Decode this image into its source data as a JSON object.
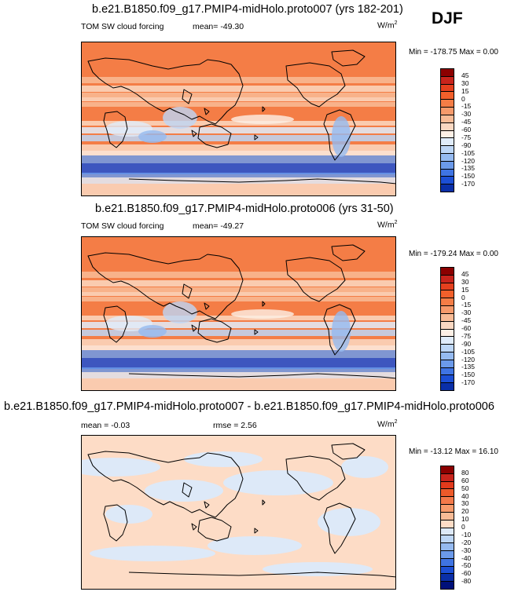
{
  "season": "DJF",
  "chart_data": [
    {
      "type": "heatmap",
      "title": "b.e21.B1850.f09_g17.PMIP4-midHolo.proto007 (yrs 182-201)",
      "left_label": "TOM SW cloud forcing",
      "mean_text": "mean= -49.30",
      "units_base": "W/m",
      "units_exp": "2",
      "minmax_text": "Min = -178.75 Max =   0.00",
      "min": -178.75,
      "max": 0.0,
      "mean": -49.3,
      "colorbar_levels": [
        "45",
        "30",
        "15",
        "0",
        "-15",
        "-30",
        "-45",
        "-60",
        "-75",
        "-90",
        "-105",
        "-120",
        "-135",
        "-150",
        "-170"
      ],
      "colorbar_colors": [
        "#8b0000",
        "#c8241c",
        "#e5401e",
        "#f2602b",
        "#f47d46",
        "#f69a6b",
        "#f8bb96",
        "#fad8c2",
        "#fdf0e6",
        "#e0ecfa",
        "#bdd6f6",
        "#95baf0",
        "#6b9aea",
        "#3f74e3",
        "#1c4fd5",
        "#0a2fa8"
      ]
    },
    {
      "type": "heatmap",
      "title": "b.e21.B1850.f09_g17.PMIP4-midHolo.proto006 (yrs 31-50)",
      "left_label": "TOM SW cloud forcing",
      "mean_text": "mean= -49.27",
      "units_base": "W/m",
      "units_exp": "2",
      "minmax_text": "Min = -179.24 Max =   0.00",
      "min": -179.24,
      "max": 0.0,
      "mean": -49.27,
      "colorbar_levels": [
        "45",
        "30",
        "15",
        "0",
        "-15",
        "-30",
        "-45",
        "-60",
        "-75",
        "-90",
        "-105",
        "-120",
        "-135",
        "-150",
        "-170"
      ],
      "colorbar_colors": [
        "#8b0000",
        "#c8241c",
        "#e5401e",
        "#f2602b",
        "#f47d46",
        "#f69a6b",
        "#f8bb96",
        "#fad8c2",
        "#fdf0e6",
        "#e0ecfa",
        "#bdd6f6",
        "#95baf0",
        "#6b9aea",
        "#3f74e3",
        "#1c4fd5",
        "#0a2fa8"
      ]
    },
    {
      "type": "heatmap",
      "title": "b.e21.B1850.f09_g17.PMIP4-midHolo.proto007 - b.e21.B1850.f09_g17.PMIP4-midHolo.proto006",
      "mean_text": "mean =   -0.03",
      "rmse_text": "rmse =    2.56",
      "units_base": "W/m",
      "units_exp": "2",
      "minmax_text": "Min = -13.12 Max =  16.10",
      "min": -13.12,
      "max": 16.1,
      "mean": -0.03,
      "rmse": 2.56,
      "colorbar_levels": [
        "80",
        "60",
        "50",
        "40",
        "30",
        "20",
        "10",
        "0",
        "-10",
        "-20",
        "-30",
        "-40",
        "-50",
        "-60",
        "-80"
      ],
      "colorbar_colors": [
        "#8b0000",
        "#c8241c",
        "#e23a1c",
        "#ec5a2a",
        "#f3794a",
        "#f69a6b",
        "#f8bb96",
        "#fddcc6",
        "#dde9f8",
        "#bdd6f6",
        "#95baf0",
        "#6b9aea",
        "#3f74e3",
        "#1c4fd5",
        "#0a2fa8",
        "#00107a"
      ]
    }
  ]
}
